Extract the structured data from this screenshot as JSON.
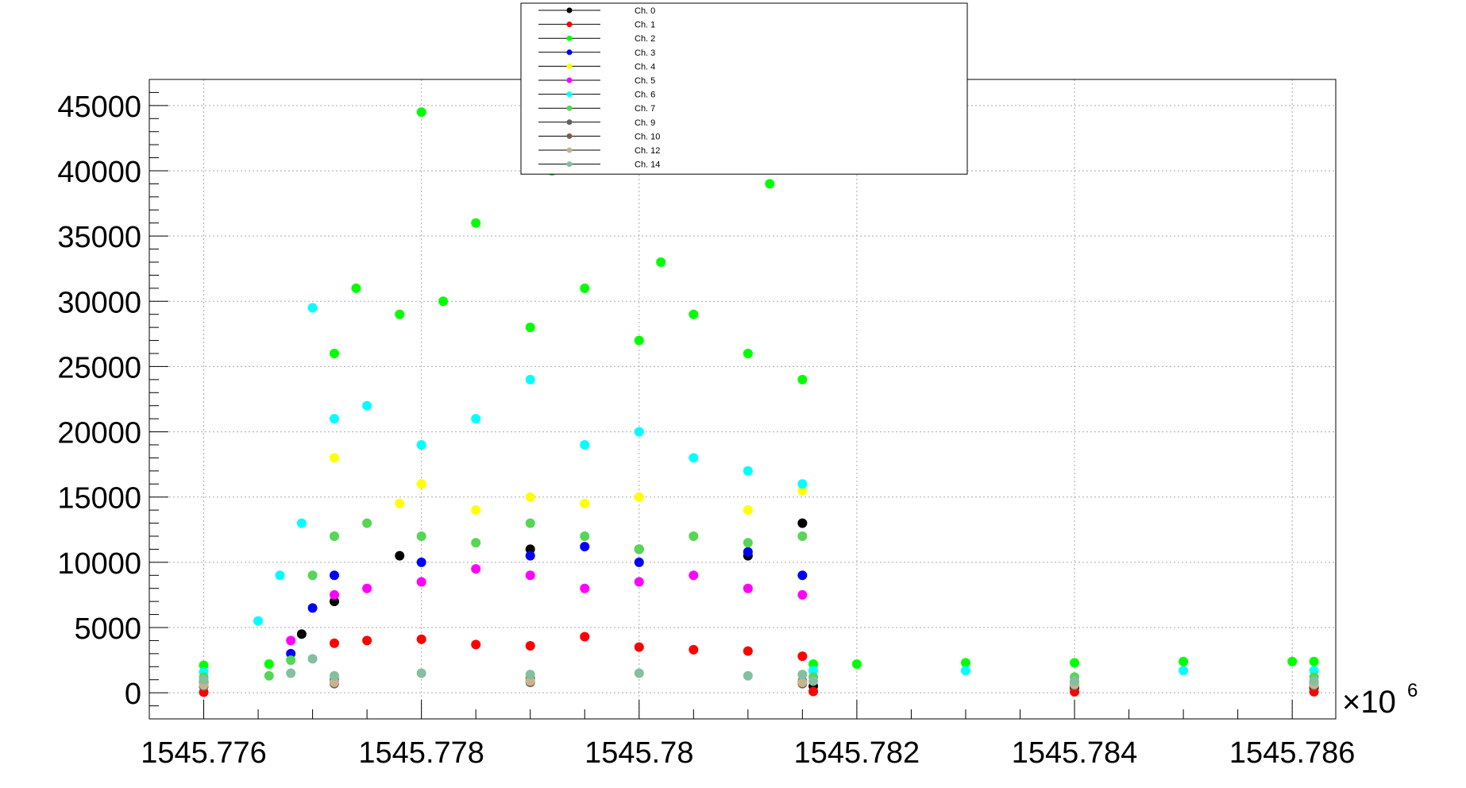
{
  "chart_data": {
    "type": "scatter",
    "title": "",
    "xlabel": "",
    "ylabel": "",
    "x_multiplier": {
      "base": "×10",
      "exponent": "6"
    },
    "xlim": [
      1545.7755,
      1545.7864
    ],
    "ylim": [
      -2000,
      47000
    ],
    "x_ticks": [
      {
        "value": 1545.776,
        "label": "1545.776"
      },
      {
        "value": 1545.778,
        "label": "1545.778"
      },
      {
        "value": 1545.78,
        "label": "1545.78"
      },
      {
        "value": 1545.782,
        "label": "1545.782"
      },
      {
        "value": 1545.784,
        "label": "1545.784"
      },
      {
        "value": 1545.786,
        "label": "1545.786"
      }
    ],
    "y_ticks": [
      {
        "value": 0,
        "label": "0"
      },
      {
        "value": 5000,
        "label": "5000"
      },
      {
        "value": 10000,
        "label": "10000"
      },
      {
        "value": 15000,
        "label": "15000"
      },
      {
        "value": 20000,
        "label": "20000"
      },
      {
        "value": 25000,
        "label": "25000"
      },
      {
        "value": 30000,
        "label": "30000"
      },
      {
        "value": 35000,
        "label": "35000"
      },
      {
        "value": 40000,
        "label": "40000"
      },
      {
        "value": 45000,
        "label": "45000"
      }
    ],
    "grid": true,
    "legend_position": "top-center",
    "series": [
      {
        "name": "Ch. 0",
        "color": "#000000",
        "x": [
          1545.776,
          1545.7769,
          1545.7772,
          1545.7778,
          1545.779,
          1545.78,
          1545.781,
          1545.7815,
          1545.7816,
          1545.784,
          1545.7862
        ],
        "y": [
          500,
          4500,
          7000,
          10500,
          11000,
          11000,
          10500,
          13000,
          500,
          400,
          400
        ]
      },
      {
        "name": "Ch. 1",
        "color": "#ff0000",
        "x": [
          1545.776,
          1545.7772,
          1545.7775,
          1545.778,
          1545.7785,
          1545.779,
          1545.7795,
          1545.78,
          1545.7805,
          1545.781,
          1545.7815,
          1545.7816,
          1545.784,
          1545.7862
        ],
        "y": [
          50,
          3800,
          4000,
          4100,
          3700,
          3600,
          4300,
          3500,
          3300,
          3200,
          2800,
          100,
          80,
          80
        ]
      },
      {
        "name": "Ch. 2",
        "color": "#00ff00",
        "x": [
          1545.776,
          1545.7766,
          1545.7772,
          1545.7774,
          1545.7778,
          1545.778,
          1545.7782,
          1545.7785,
          1545.779,
          1545.7792,
          1545.7795,
          1545.78,
          1545.7802,
          1545.7805,
          1545.781,
          1545.7812,
          1545.7815,
          1545.7816,
          1545.782,
          1545.783,
          1545.784,
          1545.785,
          1545.786,
          1545.7862
        ],
        "y": [
          2100,
          2200,
          26000,
          31000,
          29000,
          44500,
          30000,
          36000,
          28000,
          40000,
          31000,
          27000,
          33000,
          29000,
          26000,
          39000,
          24000,
          2200,
          2200,
          2300,
          2300,
          2400,
          2400,
          2400
        ]
      },
      {
        "name": "Ch. 3",
        "color": "#0000ff",
        "x": [
          1545.7768,
          1545.777,
          1545.7772,
          1545.778,
          1545.779,
          1545.7795,
          1545.78,
          1545.781,
          1545.7815
        ],
        "y": [
          3000,
          6500,
          9000,
          10000,
          10500,
          11200,
          10000,
          10800,
          9000
        ]
      },
      {
        "name": "Ch. 4",
        "color": "#ffff00",
        "x": [
          1545.7772,
          1545.7778,
          1545.778,
          1545.7785,
          1545.779,
          1545.7795,
          1545.78,
          1545.781,
          1545.7815
        ],
        "y": [
          18000,
          14500,
          16000,
          14000,
          15000,
          14500,
          15000,
          14000,
          15500
        ]
      },
      {
        "name": "Ch. 5",
        "color": "#ff00ff",
        "x": [
          1545.7768,
          1545.7772,
          1545.7775,
          1545.778,
          1545.7785,
          1545.779,
          1545.7795,
          1545.78,
          1545.7805,
          1545.781,
          1545.7815
        ],
        "y": [
          4000,
          7500,
          8000,
          8500,
          9500,
          9000,
          8000,
          8500,
          9000,
          8000,
          7500
        ]
      },
      {
        "name": "Ch. 6",
        "color": "#00ffff",
        "x": [
          1545.776,
          1545.7765,
          1545.7767,
          1545.7769,
          1545.777,
          1545.7772,
          1545.7775,
          1545.778,
          1545.7785,
          1545.779,
          1545.7795,
          1545.78,
          1545.7805,
          1545.781,
          1545.7815,
          1545.7816,
          1545.783,
          1545.785,
          1545.7862
        ],
        "y": [
          1600,
          5500,
          9000,
          13000,
          29500,
          21000,
          22000,
          19000,
          21000,
          24000,
          19000,
          20000,
          18000,
          17000,
          16000,
          1700,
          1700,
          1700,
          1700
        ]
      },
      {
        "name": "Ch. 7",
        "color": "#55d655",
        "x": [
          1545.776,
          1545.7766,
          1545.7768,
          1545.777,
          1545.7772,
          1545.7775,
          1545.778,
          1545.7785,
          1545.779,
          1545.7795,
          1545.78,
          1545.7805,
          1545.781,
          1545.7815,
          1545.7816,
          1545.784,
          1545.7862
        ],
        "y": [
          1200,
          1300,
          2500,
          9000,
          12000,
          13000,
          12000,
          11500,
          13000,
          12000,
          11000,
          12000,
          11500,
          12000,
          1200,
          1200,
          1200
        ]
      },
      {
        "name": "Ch. 9",
        "color": "#636363",
        "x": [
          1545.776,
          1545.7772,
          1545.779,
          1545.7815,
          1545.784,
          1545.7862
        ],
        "y": [
          800,
          1000,
          1100,
          900,
          800,
          800
        ]
      },
      {
        "name": "Ch. 10",
        "color": "#7d5c4e",
        "x": [
          1545.776,
          1545.7772,
          1545.779,
          1545.7815,
          1545.784,
          1545.7862
        ],
        "y": [
          500,
          700,
          800,
          700,
          550,
          550
        ]
      },
      {
        "name": "Ch. 12",
        "color": "#c8b38f",
        "x": [
          1545.776,
          1545.7772,
          1545.779,
          1545.7815,
          1545.784,
          1545.7862
        ],
        "y": [
          600,
          800,
          900,
          800,
          650,
          650
        ]
      },
      {
        "name": "Ch. 14",
        "color": "#84bfa0",
        "x": [
          1545.776,
          1545.7768,
          1545.777,
          1545.7772,
          1545.778,
          1545.779,
          1545.78,
          1545.781,
          1545.7815,
          1545.7816,
          1545.784,
          1545.7862
        ],
        "y": [
          1000,
          1500,
          2600,
          1300,
          1500,
          1400,
          1500,
          1300,
          1400,
          900,
          900,
          900
        ]
      }
    ]
  }
}
